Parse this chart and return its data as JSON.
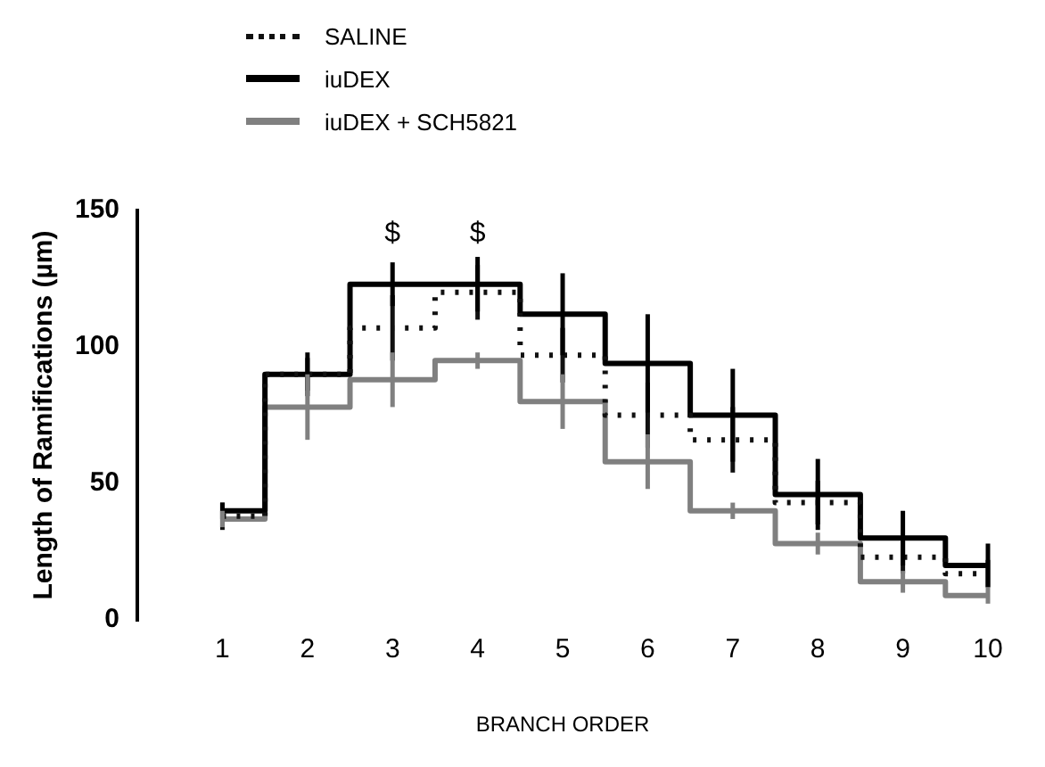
{
  "chart_data": {
    "type": "step",
    "xlabel": "BRANCH ORDER",
    "ylabel": "Length of Ramifications (µm)",
    "x": [
      1,
      2,
      3,
      4,
      5,
      6,
      7,
      8,
      9,
      10
    ],
    "xlim": [
      0,
      10
    ],
    "xticks": [
      1,
      2,
      3,
      4,
      5,
      6,
      7,
      8,
      9,
      10
    ],
    "ylim": [
      0,
      150
    ],
    "yticks": [
      0,
      50,
      100,
      150
    ],
    "grid": false,
    "legend": "top left",
    "marker": "none",
    "series": [
      {
        "name": "SALINE",
        "color": "#111111",
        "line_style": "dotted",
        "values": [
          38,
          90,
          107,
          120,
          97,
          75,
          66,
          43,
          23,
          17
        ],
        "errors": [
          5,
          6,
          12,
          10,
          10,
          12,
          12,
          8,
          6,
          5
        ]
      },
      {
        "name": "iuDEX",
        "color": "#000000",
        "line_style": "solid",
        "values": [
          40,
          90,
          123,
          123,
          112,
          94,
          75,
          46,
          30,
          20
        ],
        "errors": [
          3,
          8,
          8,
          10,
          15,
          18,
          17,
          13,
          10,
          8
        ]
      },
      {
        "name": "iuDEX + SCH5821",
        "color": "#808080",
        "line_style": "solid",
        "values": [
          37,
          78,
          88,
          95,
          80,
          58,
          40,
          28,
          14,
          9
        ],
        "errors": [
          3,
          12,
          10,
          3,
          10,
          10,
          3,
          4,
          4,
          3
        ]
      }
    ],
    "annotations": [
      {
        "text": "$",
        "x": 3,
        "y": 123
      },
      {
        "text": "$",
        "x": 4,
        "y": 123
      }
    ]
  }
}
